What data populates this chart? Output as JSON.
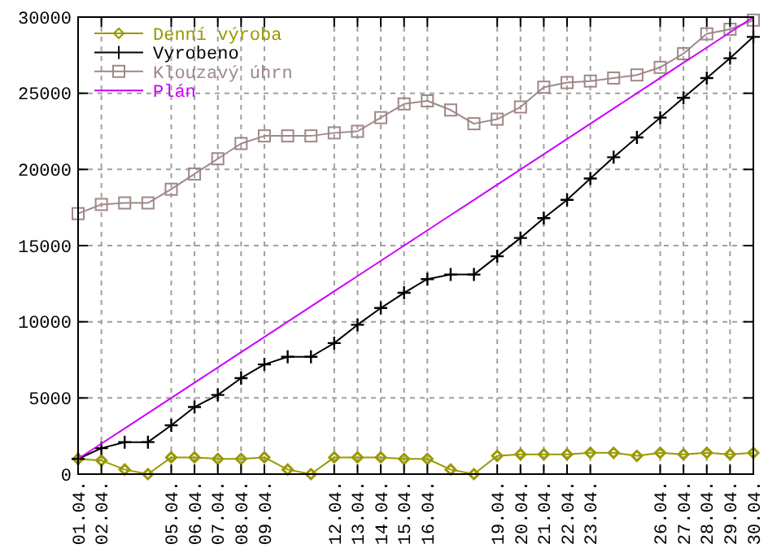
{
  "chart_data": {
    "type": "line",
    "categories": [
      "01.04.",
      "02.04.",
      null,
      null,
      "05.04.",
      "06.04.",
      "07.04.",
      "08.04.",
      "09.04.",
      null,
      null,
      "12.04.",
      "13.04.",
      "14.04.",
      "15.04.",
      "16.04.",
      null,
      null,
      "19.04.",
      "20.04.",
      "21.04.",
      "22.04.",
      "23.04.",
      null,
      null,
      "26.04.",
      "27.04.",
      "28.04.",
      "29.04.",
      "30.04."
    ],
    "series": [
      {
        "name": "Denní výroba",
        "color": "#999900",
        "marker": "diamond",
        "values": [
          1000,
          900,
          300,
          0,
          1100,
          1100,
          1000,
          1000,
          1100,
          300,
          0,
          1100,
          1100,
          1100,
          1000,
          1000,
          300,
          0,
          1200,
          1300,
          1300,
          1300,
          1400,
          1400,
          1200,
          1400,
          1300,
          1400,
          1300,
          1400
        ]
      },
      {
        "name": "Vyrobeno",
        "color": "#000000",
        "marker": "cross",
        "values": [
          1000,
          1700,
          2100,
          2100,
          3200,
          4400,
          5200,
          6300,
          7200,
          7700,
          7700,
          8600,
          9800,
          10900,
          11900,
          12800,
          13100,
          13100,
          14300,
          15500,
          16800,
          18000,
          19400,
          20800,
          22100,
          23400,
          24700,
          26000,
          27300,
          28700
        ]
      },
      {
        "name": "Klouzavý úhrn",
        "color": "#a08888",
        "marker": "square",
        "values": [
          17100,
          17700,
          17800,
          17800,
          18700,
          19700,
          20700,
          21700,
          22200,
          22200,
          22200,
          22400,
          22500,
          23400,
          24300,
          24500,
          23900,
          23000,
          23300,
          24100,
          25400,
          25700,
          25800,
          26000,
          26200,
          26700,
          27600,
          28900,
          29200,
          29800
        ]
      },
      {
        "name": "Plán",
        "color": "#cc00ff",
        "marker": "none",
        "values": [
          1000,
          2000,
          3000,
          4000,
          5000,
          6000,
          7000,
          8000,
          9000,
          10000,
          11000,
          12000,
          13000,
          14000,
          15000,
          16000,
          17000,
          18000,
          19000,
          20000,
          21000,
          22000,
          23000,
          24000,
          25000,
          26000,
          27000,
          28000,
          29000,
          30000
        ]
      }
    ],
    "ylim": [
      0,
      30000
    ],
    "yticks": [
      0,
      5000,
      10000,
      15000,
      20000,
      25000,
      30000
    ],
    "grid": true,
    "legend": "top left"
  }
}
